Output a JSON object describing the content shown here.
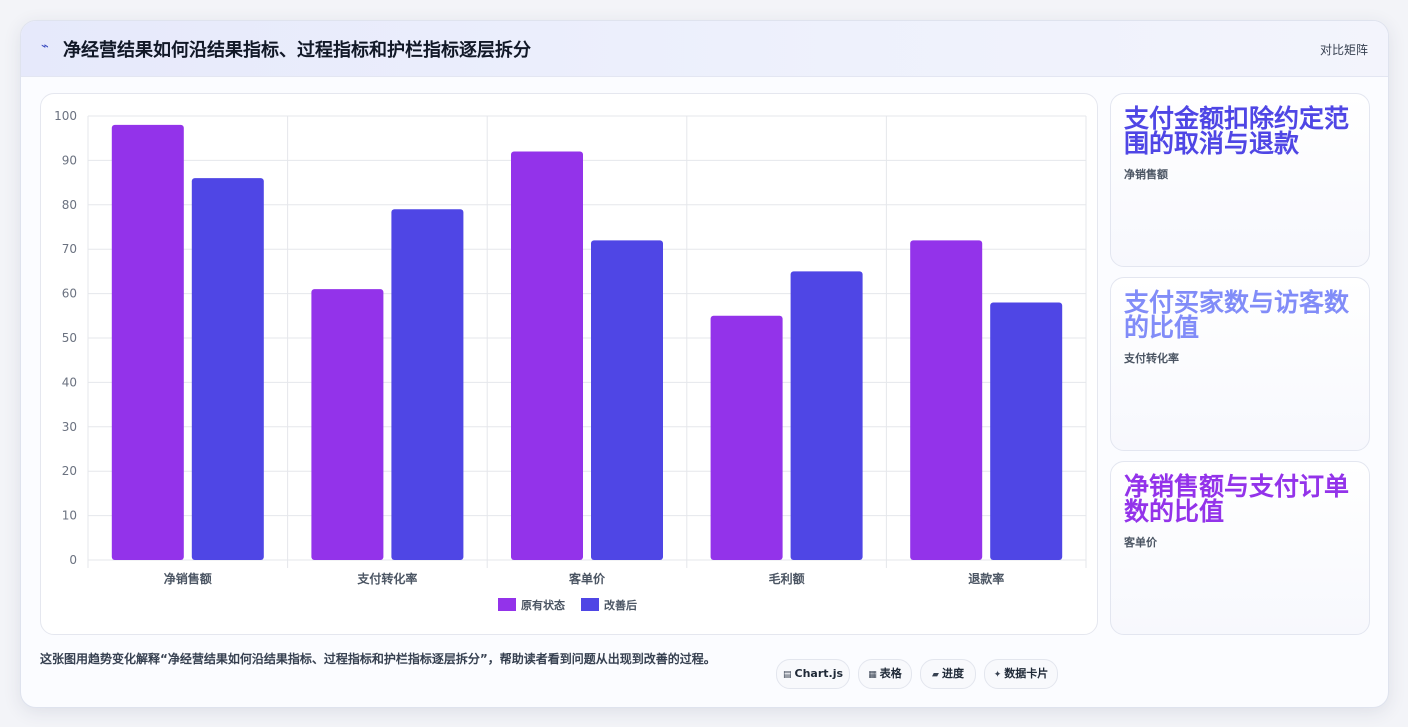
{
  "header": {
    "title": "净经营结果如何沿结果指标、过程指标和护栏指标逐层拆分",
    "right_link": "对比矩阵"
  },
  "chart_data": {
    "type": "bar",
    "categories": [
      "净销售额",
      "支付转化率",
      "客单价",
      "毛利额",
      "退款率"
    ],
    "series": [
      {
        "name": "原有状态",
        "values": [
          98,
          61,
          92,
          55,
          72
        ],
        "color": "#9333ea"
      },
      {
        "name": "改善后",
        "values": [
          86,
          79,
          72,
          65,
          58
        ],
        "color": "#4f46e5"
      }
    ],
    "ylim": [
      0,
      100
    ],
    "yticks": [
      0,
      10,
      20,
      30,
      40,
      50,
      60,
      70,
      80,
      90,
      100
    ],
    "grid": true,
    "legend": "bottom"
  },
  "side_cards": [
    {
      "title": "支付金额扣除约定范围的取消与退款",
      "subtitle": "净销售额",
      "color": "#4f46e5"
    },
    {
      "title": "支付买家数与访客数的比值",
      "subtitle": "支付转化率",
      "color": "#818cf8"
    },
    {
      "title": "净销售额与支付订单数的比值",
      "subtitle": "客单价",
      "color": "#9333ea"
    }
  ],
  "footer": {
    "description": "这张图用趋势变化解释“净经营结果如何沿结果指标、过程指标和护栏指标逐层拆分”，帮助读者看到问题从出现到改善的过程。",
    "tags": [
      {
        "icon": "▤",
        "label": "Chart.js"
      },
      {
        "icon": "▦",
        "label": "表格"
      },
      {
        "icon": "▰",
        "label": "进度"
      },
      {
        "icon": "✦",
        "label": "数据卡片"
      }
    ]
  }
}
